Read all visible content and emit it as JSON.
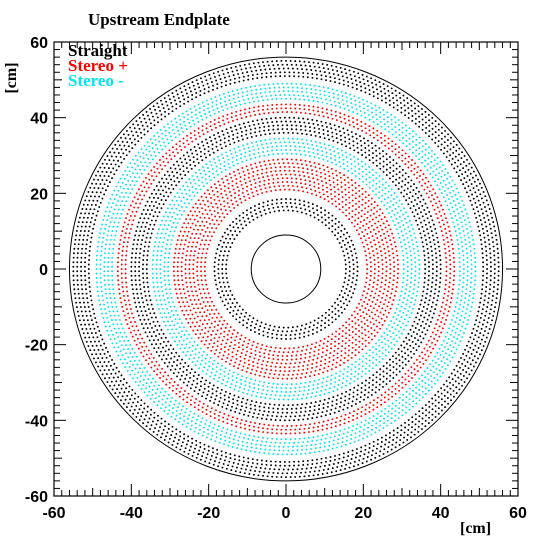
{
  "chart_data": {
    "type": "scatter",
    "title": "Upstream Endplate",
    "xlabel": "[cm]",
    "ylabel": "[cm]",
    "xlim": [
      -60,
      60
    ],
    "ylim": [
      -60,
      60
    ],
    "xticks": [
      -60,
      -40,
      -20,
      0,
      20,
      40,
      60
    ],
    "yticks": [
      -60,
      -40,
      -20,
      0,
      20,
      40,
      60
    ],
    "tick_labels_x": [
      "-60",
      "-40",
      "-20",
      "0",
      "20",
      "40",
      "60"
    ],
    "tick_labels_y": [
      "-60",
      "-40",
      "-20",
      "0",
      "20",
      "40",
      "60"
    ],
    "legend": {
      "placement": "top-left",
      "entries": [
        {
          "label": "Straight",
          "color": "#000000"
        },
        {
          "label": "Stereo +",
          "color": "#ff0000"
        },
        {
          "label": "Stereo -",
          "color": "#00e5ee"
        }
      ]
    },
    "boundary_circles_radius_cm": [
      9,
      56
    ],
    "series": [
      {
        "name": "Straight",
        "color": "#000000",
        "ring_radii_cm": [
          15.5,
          16.5,
          17.5,
          18.5,
          36.0,
          37.0,
          38.0,
          39.0,
          40.0,
          51.0,
          52.0,
          53.0,
          54.0,
          55.0
        ]
      },
      {
        "name": "Stereo +",
        "color": "#ff0000",
        "ring_radii_cm": [
          21.0,
          22.0,
          23.0,
          24.0,
          25.0,
          26.0,
          27.0,
          28.0,
          29.0,
          41.5,
          42.5,
          43.5
        ]
      },
      {
        "name": "Stereo -",
        "color": "#00e5ee",
        "ring_radii_cm": [
          30.5,
          31.5,
          32.5,
          33.5,
          34.5,
          45.0,
          46.0,
          47.0,
          48.0,
          49.0
        ]
      }
    ]
  }
}
